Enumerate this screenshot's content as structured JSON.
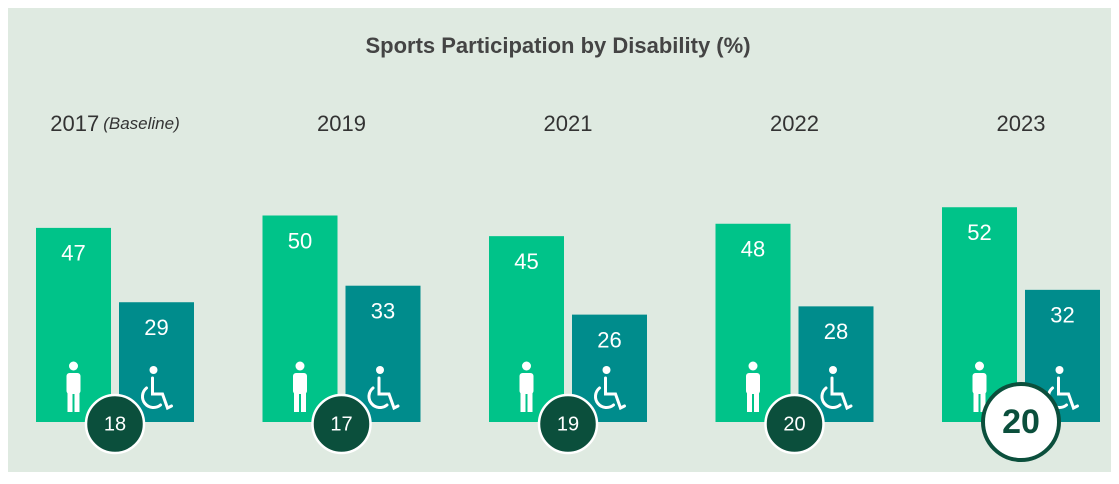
{
  "chart_data": {
    "type": "bar",
    "title": "Sports Participation by Disability (%)",
    "categories": [
      "2017",
      "2019",
      "2021",
      "2022",
      "2023"
    ],
    "baseline_label": "(Baseline)",
    "series": [
      {
        "color": "#00c389",
        "values": [
          47,
          50,
          45,
          48,
          52
        ]
      },
      {
        "color": "#008c8c",
        "values": [
          29,
          33,
          26,
          28,
          32
        ]
      }
    ],
    "gaps": [
      18,
      17,
      19,
      20,
      20
    ],
    "gap_color": "#0b4f3c"
  }
}
